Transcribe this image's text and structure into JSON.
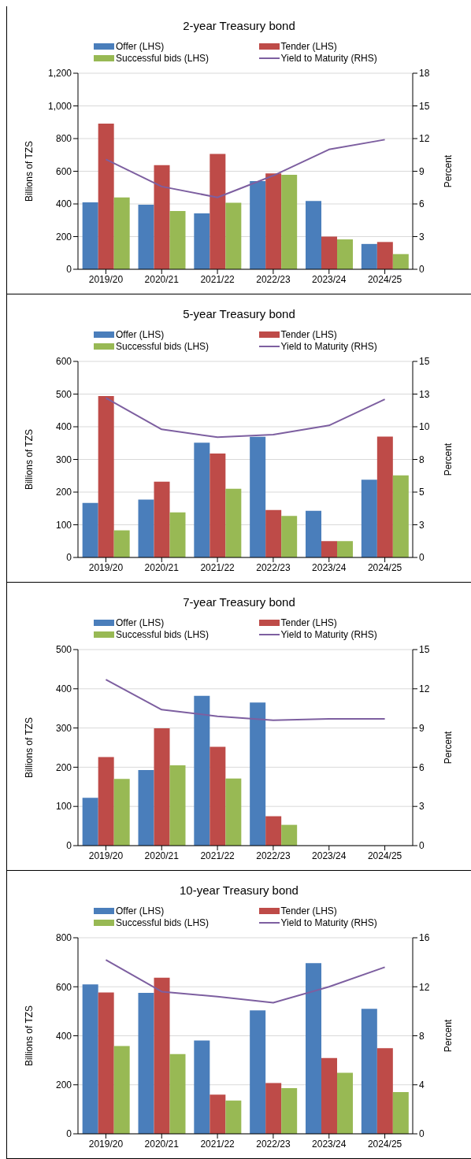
{
  "chart_data": [
    {
      "type": "bar",
      "title": "2-year Treasury bond",
      "ylabel": "Billions of TZS",
      "y2label": "Percent",
      "categories": [
        "2019/20",
        "2020/21",
        "2021/22",
        "2022/23",
        "2023/24",
        "2024/25"
      ],
      "series": [
        {
          "name": "Offer (LHS)",
          "color": "#4a7ebb",
          "values": [
            410,
            395,
            342,
            540,
            418,
            155
          ]
        },
        {
          "name": "Tender (LHS)",
          "color": "#be4b48",
          "values": [
            892,
            637,
            706,
            587,
            200,
            167
          ]
        },
        {
          "name": "Successful bids (LHS)",
          "color": "#98b954",
          "values": [
            440,
            357,
            407,
            578,
            183,
            93
          ]
        },
        {
          "name": "Yield to Maturity (RHS)",
          "type": "line",
          "axis": "y2",
          "color": "#7d5fa0",
          "values": [
            10.1,
            7.6,
            6.6,
            8.6,
            11.0,
            11.9
          ]
        }
      ],
      "ylim": [
        0,
        1200
      ],
      "yticks": [
        0,
        200,
        400,
        600,
        800,
        {
          "value": 1000,
          "label": "1,000"
        },
        {
          "value": 1200,
          "label": "1,200"
        }
      ],
      "y2lim": [
        0,
        18
      ],
      "y2ticks": [
        0,
        3,
        6,
        9,
        12,
        15,
        18
      ],
      "grid": "y",
      "legend": "top",
      "marker": "none"
    },
    {
      "type": "bar",
      "title": "5-year Treasury bond",
      "ylabel": "Billions of TZS",
      "y2label": "Percent",
      "categories": [
        "2019/20",
        "2020/21",
        "2021/22",
        "2022/23",
        "2023/24",
        "2024/25"
      ],
      "series": [
        {
          "name": "Offer (LHS)",
          "color": "#4a7ebb",
          "values": [
            167,
            177,
            351,
            369,
            143,
            238
          ]
        },
        {
          "name": "Tender (LHS)",
          "color": "#be4b48",
          "values": [
            494,
            232,
            318,
            145,
            50,
            370
          ]
        },
        {
          "name": "Successful bids (LHS)",
          "color": "#98b954",
          "values": [
            83,
            138,
            210,
            127,
            50,
            251
          ]
        },
        {
          "name": "Yield to Maturity (RHS)",
          "type": "line",
          "axis": "y2",
          "color": "#7d5fa0",
          "values": [
            12.2,
            9.8,
            9.2,
            9.4,
            10.1,
            12.1
          ]
        }
      ],
      "ylim": [
        0,
        600
      ],
      "yticks": [
        0,
        100,
        200,
        300,
        400,
        500,
        600
      ],
      "y2lim": [
        0,
        15
      ],
      "y2ticks": [
        0,
        {
          "value": 2.5,
          "label": "3"
        },
        5,
        {
          "value": 7.5,
          "label": "8"
        },
        10,
        {
          "value": 12.5,
          "label": "13"
        },
        15
      ],
      "grid": "y",
      "legend": "top",
      "marker": "none"
    },
    {
      "type": "bar",
      "title": "7-year Treasury bond",
      "ylabel": "Billions of TZS",
      "y2label": "Percent",
      "categories": [
        "2019/20",
        "2020/21",
        "2021/22",
        "2022/23",
        "2023/24",
        "2024/25"
      ],
      "series": [
        {
          "name": "Offer (LHS)",
          "color": "#4a7ebb",
          "values": [
            122,
            193,
            382,
            365,
            null,
            null
          ]
        },
        {
          "name": "Tender (LHS)",
          "color": "#be4b48",
          "values": [
            226,
            299,
            252,
            75,
            null,
            null
          ]
        },
        {
          "name": "Successful bids (LHS)",
          "color": "#98b954",
          "values": [
            170,
            205,
            171,
            53,
            null,
            null
          ]
        },
        {
          "name": "Yield to Maturity (RHS)",
          "type": "line",
          "axis": "y2",
          "color": "#7d5fa0",
          "values": [
            12.7,
            10.4,
            9.9,
            9.6,
            9.7,
            9.7
          ]
        }
      ],
      "ylim": [
        0,
        500
      ],
      "yticks": [
        0,
        100,
        200,
        300,
        400,
        500
      ],
      "y2lim": [
        0,
        15
      ],
      "y2ticks": [
        0,
        3,
        6,
        9,
        12,
        15
      ],
      "grid": "y",
      "legend": "top",
      "marker": "none"
    },
    {
      "type": "bar",
      "title": "10-year Treasury bond",
      "ylabel": "Billions of TZS",
      "y2label": "Percent",
      "categories": [
        "2019/20",
        "2020/21",
        "2021/22",
        "2022/23",
        "2023/24",
        "2024/25"
      ],
      "series": [
        {
          "name": "Offer (LHS)",
          "color": "#4a7ebb",
          "values": [
            610,
            575,
            381,
            504,
            696,
            510
          ]
        },
        {
          "name": "Tender (LHS)",
          "color": "#be4b48",
          "values": [
            577,
            637,
            160,
            207,
            309,
            349
          ]
        },
        {
          "name": "Successful bids (LHS)",
          "color": "#98b954",
          "values": [
            358,
            325,
            136,
            186,
            249,
            170
          ]
        },
        {
          "name": "Yield to Maturity (RHS)",
          "type": "line",
          "axis": "y2",
          "color": "#7d5fa0",
          "values": [
            14.2,
            11.6,
            11.2,
            10.7,
            12.0,
            13.6
          ]
        }
      ],
      "ylim": [
        0,
        800
      ],
      "yticks": [
        0,
        200,
        400,
        600,
        800
      ],
      "y2lim": [
        0,
        16
      ],
      "y2ticks": [
        0,
        4,
        8,
        12,
        16
      ],
      "grid": "y",
      "legend": "top",
      "marker": "none"
    }
  ]
}
